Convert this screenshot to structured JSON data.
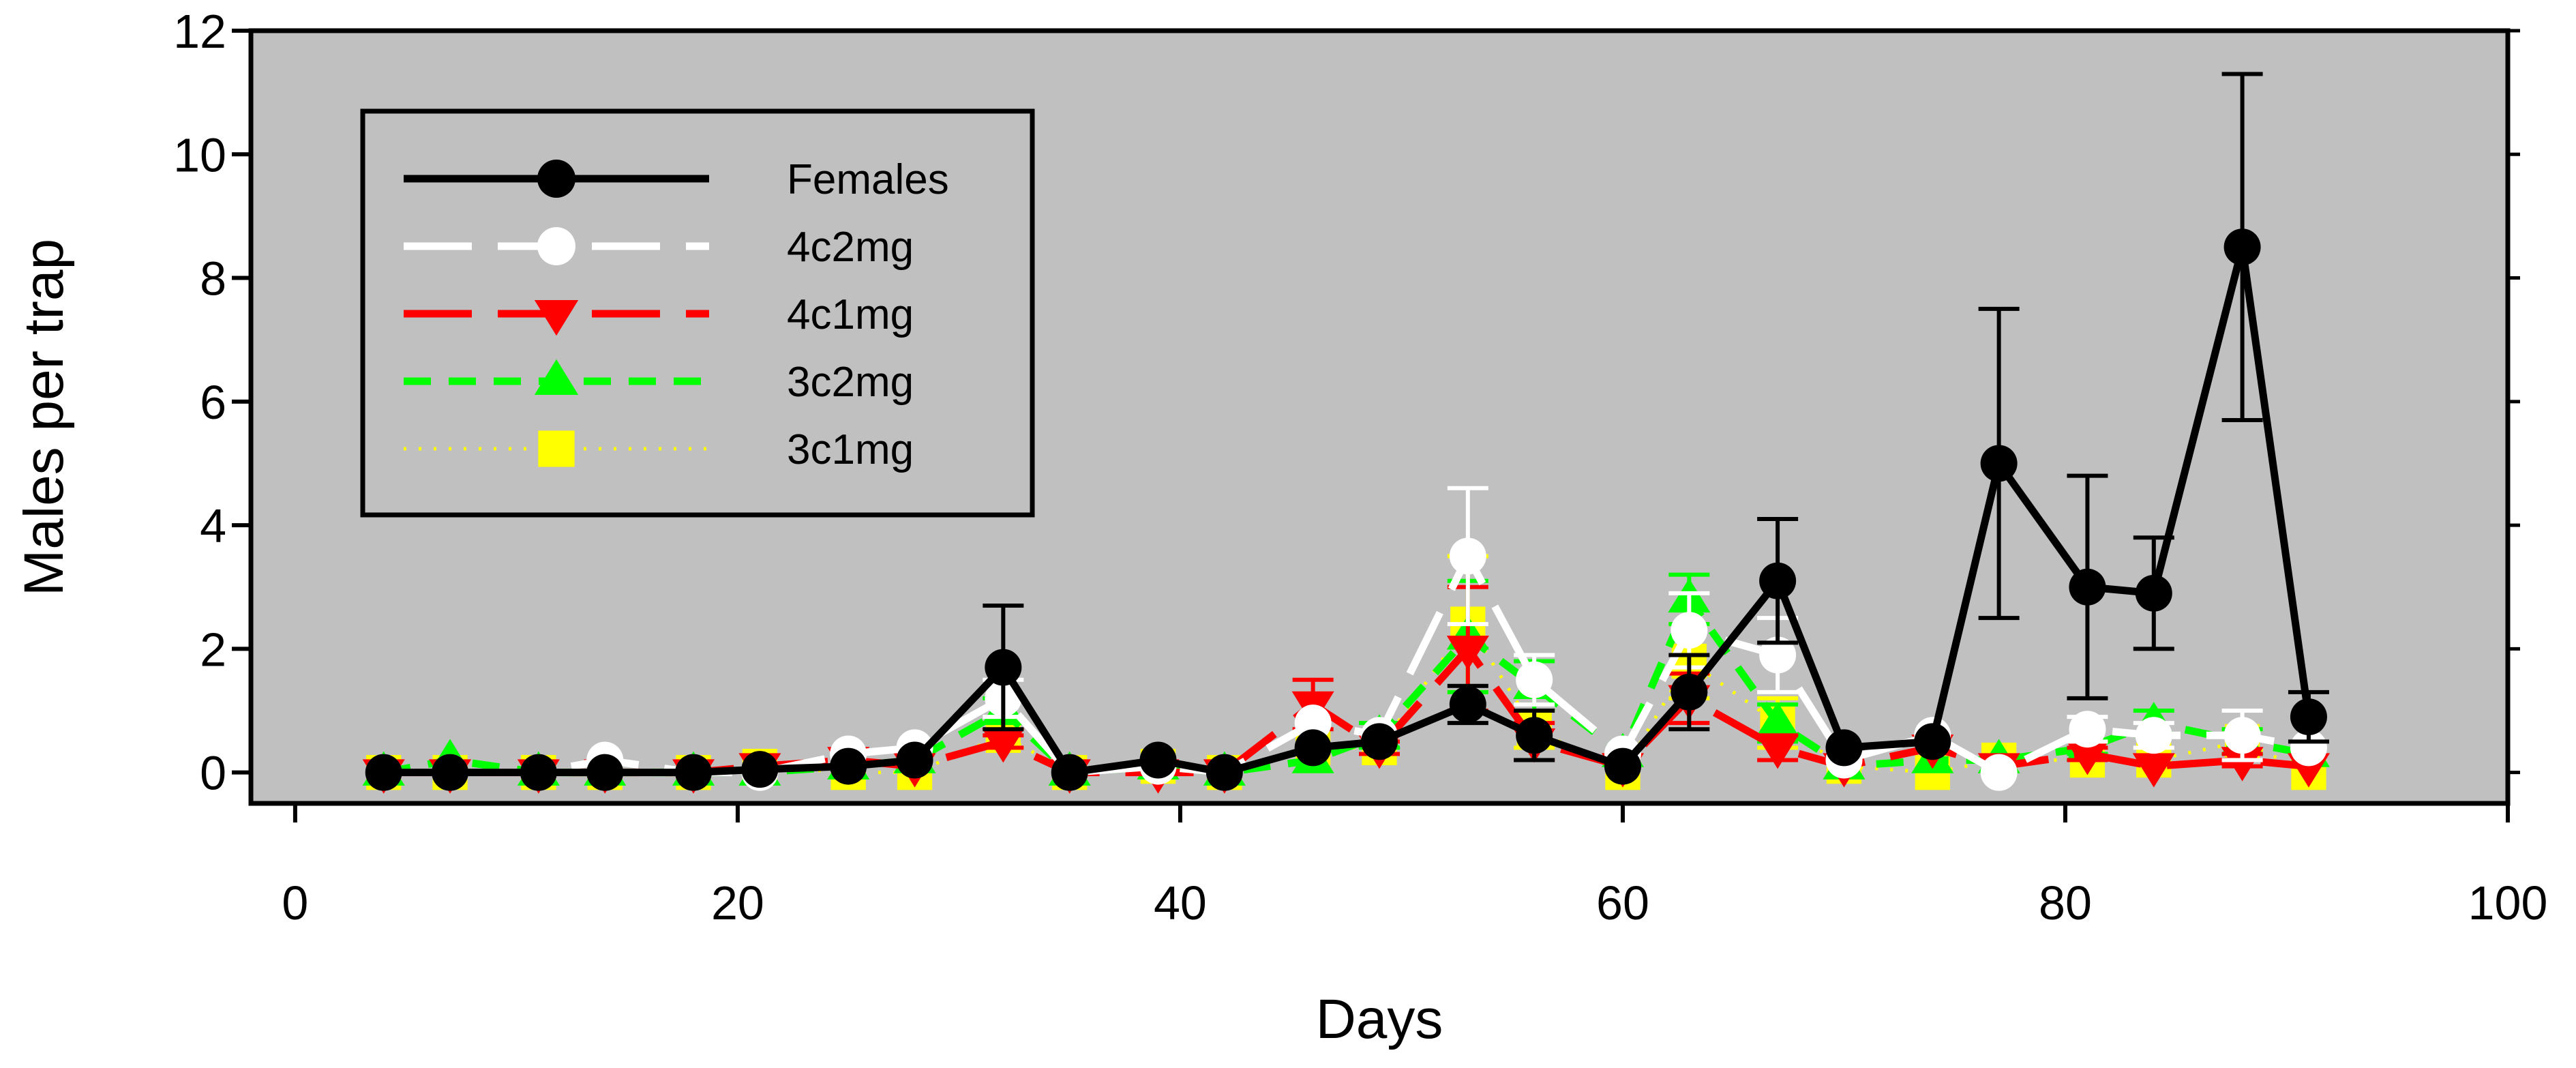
{
  "chart_data": {
    "type": "line",
    "title": "",
    "xlabel": "Days",
    "ylabel": "Males per trap",
    "xlim": [
      -2,
      100
    ],
    "ylim": [
      -0.5,
      12
    ],
    "xticks": [
      0,
      20,
      40,
      60,
      80,
      100
    ],
    "yticks": [
      0,
      2,
      4,
      6,
      8,
      10,
      12
    ],
    "xtick_labels": [
      "0",
      "20",
      "40",
      "60",
      "80",
      "100"
    ],
    "ytick_labels": [
      "0",
      "2",
      "4",
      "6",
      "8",
      "10",
      "12"
    ],
    "plot_background": "#c0c0c0",
    "legend_position": "top-left",
    "x": [
      4,
      7,
      11,
      14,
      18,
      21,
      25,
      28,
      32,
      35,
      39,
      42,
      46,
      49,
      53,
      56,
      60,
      63,
      67,
      70,
      74,
      77,
      81,
      84,
      88,
      91
    ],
    "series": [
      {
        "name": "Females",
        "color": "#000000",
        "marker": "circle-filled",
        "line_style": "solid",
        "values": [
          0,
          0,
          0,
          0,
          0,
          0.05,
          0.1,
          0.2,
          1.7,
          0,
          0.2,
          0,
          0.4,
          0.5,
          1.1,
          0.6,
          0.1,
          1.3,
          3.1,
          0.4,
          0.5,
          5.0,
          3.0,
          2.9,
          8.5,
          0.9
        ],
        "errors": [
          0,
          0,
          0,
          0,
          0,
          0,
          0,
          0,
          1.0,
          0,
          0,
          0,
          0,
          0,
          0.3,
          0.4,
          0,
          0.6,
          1.0,
          0,
          0,
          2.5,
          1.8,
          0.9,
          2.8,
          0.4
        ]
      },
      {
        "name": "4c2mg",
        "color": "#ffffff",
        "marker": "circle-open",
        "line_style": "long-dash",
        "values": [
          0,
          0,
          0,
          0.2,
          0,
          0,
          0.3,
          0.4,
          1.2,
          0,
          0.1,
          0,
          0.8,
          0.6,
          3.5,
          1.5,
          0.3,
          2.3,
          1.9,
          0.2,
          0.6,
          0,
          0.7,
          0.6,
          0.6,
          0.4
        ],
        "errors": [
          0,
          0,
          0,
          0,
          0,
          0,
          0,
          0,
          0.3,
          0,
          0,
          0,
          0,
          0,
          1.1,
          0.4,
          0,
          0.6,
          0.6,
          0,
          0,
          0,
          0.2,
          0.2,
          0.4,
          0
        ]
      },
      {
        "name": "4c1mg",
        "color": "#ff0000",
        "marker": "triangle-down",
        "line_style": "long-dash",
        "values": [
          0,
          0,
          0,
          0,
          0,
          0.1,
          0.2,
          0.1,
          0.5,
          0,
          0,
          0,
          1.1,
          0.4,
          2.0,
          0.5,
          0.1,
          1.2,
          0.4,
          0.1,
          0.4,
          0.1,
          0.3,
          0.1,
          0.2,
          0.1
        ],
        "errors": [
          0,
          0,
          0,
          0,
          0,
          0,
          0,
          0,
          0.1,
          0,
          0,
          0,
          0.4,
          0.1,
          1.0,
          0.3,
          0,
          0.4,
          0.2,
          0,
          0,
          0,
          0.1,
          0,
          0.1,
          0
        ]
      },
      {
        "name": "3c2mg",
        "color": "#00ff00",
        "marker": "triangle-up",
        "line_style": "short-dash",
        "values": [
          0,
          0.2,
          0,
          0,
          0,
          0,
          0.1,
          0.2,
          1.0,
          0,
          0.1,
          0,
          0.2,
          0.6,
          2.2,
          1.4,
          0.3,
          2.8,
          0.8,
          0.1,
          0.2,
          0.2,
          0.4,
          0.8,
          0.5,
          0.3
        ],
        "errors": [
          0,
          0,
          0,
          0,
          0,
          0,
          0,
          0,
          0.2,
          0,
          0,
          0,
          0,
          0.2,
          0.9,
          0.4,
          0,
          0.4,
          0.3,
          0,
          0,
          0,
          0.1,
          0.2,
          0.2,
          0
        ]
      },
      {
        "name": "3c1mg",
        "color": "#ffff00",
        "marker": "square",
        "line_style": "dotted",
        "values": [
          0,
          0,
          0,
          0,
          0,
          0.1,
          0,
          0,
          0.6,
          0,
          0.1,
          0,
          0.4,
          0.4,
          2.4,
          0.7,
          0,
          1.8,
          0.8,
          0.1,
          0,
          0.2,
          0.2,
          0.2,
          0.5,
          0
        ],
        "errors": [
          0,
          0,
          0,
          0,
          0,
          0,
          0,
          0,
          0.2,
          0,
          0,
          0,
          0,
          0,
          1.1,
          0.3,
          0,
          0.6,
          0.4,
          0,
          0,
          0,
          0,
          0,
          0.2,
          0
        ]
      }
    ]
  }
}
